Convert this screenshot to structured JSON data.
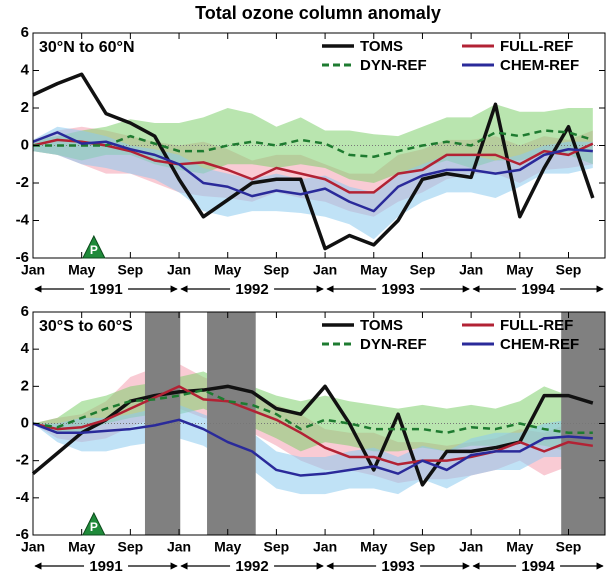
{
  "title": "Total ozone column anomaly",
  "chart_data": [
    {
      "type": "line",
      "label": "30°N to 60°N",
      "x": [
        0,
        2,
        4,
        6,
        8,
        10,
        12,
        14,
        16,
        18,
        20,
        22,
        24,
        26,
        28,
        30,
        32,
        34,
        36,
        38,
        40,
        42,
        44,
        46
      ],
      "xlim": [
        0,
        47
      ],
      "xticks": [
        {
          "value": 0,
          "label": "Jan"
        },
        {
          "value": 4,
          "label": "May"
        },
        {
          "value": 8,
          "label": "Sep"
        },
        {
          "value": 12,
          "label": "Jan"
        },
        {
          "value": 16,
          "label": "May"
        },
        {
          "value": 20,
          "label": "Sep"
        },
        {
          "value": 24,
          "label": "Jan"
        },
        {
          "value": 28,
          "label": "May"
        },
        {
          "value": 32,
          "label": "Sep"
        },
        {
          "value": 36,
          "label": "Jan"
        },
        {
          "value": 40,
          "label": "May"
        },
        {
          "value": 44,
          "label": "Sep"
        }
      ],
      "years": [
        {
          "label": "1991",
          "start": 0,
          "end": 12
        },
        {
          "label": "1992",
          "start": 12,
          "end": 24
        },
        {
          "label": "1993",
          "start": 24,
          "end": 36
        },
        {
          "label": "1994",
          "start": 36,
          "end": 47
        }
      ],
      "ylim": [
        -6,
        6
      ],
      "yticks": [
        -6,
        -4,
        -2,
        0,
        2,
        4,
        6
      ],
      "event": {
        "label": "P",
        "x": 5
      },
      "series": [
        {
          "name": "TOMS",
          "color": "#111111",
          "style": "solid",
          "values": [
            2.7,
            3.3,
            3.8,
            1.7,
            1.2,
            0.5,
            -1.8,
            -3.8,
            -2.9,
            -2.0,
            -1.8,
            -1.8,
            -5.5,
            -4.8,
            -5.3,
            -4.0,
            -1.8,
            -1.5,
            -1.7,
            2.2,
            -3.8,
            -1.2,
            1.0,
            -2.8
          ]
        },
        {
          "name": "FULL-REF",
          "color": "#b22234",
          "style": "solid",
          "values": [
            0,
            0.3,
            0.2,
            0,
            -0.3,
            -0.8,
            -1.0,
            -0.9,
            -1.3,
            -1.8,
            -1.2,
            -1.5,
            -1.8,
            -2.5,
            -2.5,
            -1.5,
            -1.3,
            -0.5,
            -0.5,
            -0.5,
            -1.0,
            -0.3,
            -0.5,
            0.1
          ],
          "band": {
            "color": "#f4a0b0",
            "upper": [
              0.3,
              0.8,
              1.0,
              0.8,
              0.5,
              0.2,
              0,
              0.2,
              -0.2,
              -0.8,
              -0.5,
              -0.5,
              -1.0,
              -1.5,
              -1.5,
              -0.5,
              -0.2,
              0.3,
              0.3,
              0.5,
              0,
              0.5,
              0.3,
              0.8
            ],
            "lower": [
              -0.3,
              -0.5,
              -1.0,
              -1.5,
              -1.5,
              -2.0,
              -2.5,
              -2.7,
              -2.8,
              -3.0,
              -2.5,
              -2.8,
              -3.0,
              -3.5,
              -3.8,
              -3.0,
              -2.5,
              -1.8,
              -1.5,
              -1.5,
              -2.0,
              -1.3,
              -1.2,
              -1.0
            ]
          }
        },
        {
          "name": "DYN-REF",
          "color": "#1e7b30",
          "style": "dashed",
          "values": [
            0,
            0,
            0,
            0,
            0.5,
            0.1,
            -0.3,
            -0.3,
            0,
            0.2,
            0,
            0.3,
            0.1,
            -0.5,
            -0.6,
            -0.3,
            0,
            0.2,
            0,
            0.7,
            0.5,
            0.8,
            0.7,
            0.3
          ],
          "band": {
            "color": "#7fcf6e",
            "upper": [
              0.3,
              0.5,
              0.8,
              1.0,
              1.4,
              1.2,
              1.2,
              1.5,
              2.0,
              1.7,
              1.0,
              1.5,
              0.8,
              0.8,
              0.6,
              0.5,
              1.0,
              1.5,
              1.5,
              2.2,
              1.8,
              1.8,
              2.0,
              2.0
            ],
            "lower": [
              -0.3,
              -0.5,
              -0.8,
              -0.5,
              -0.5,
              -1.0,
              -1.3,
              -1.5,
              -1.0,
              -1.0,
              -1.2,
              -1.0,
              -1.2,
              -1.8,
              -2.0,
              -1.5,
              -1.2,
              -0.8,
              -1.2,
              -0.8,
              -0.8,
              -0.5,
              -0.5,
              -1.0
            ]
          }
        },
        {
          "name": "CHEM-REF",
          "color": "#2a2a9a",
          "style": "solid",
          "values": [
            0.2,
            0.7,
            0.1,
            0.2,
            -0.2,
            -0.5,
            -1.0,
            -2.0,
            -2.2,
            -2.7,
            -2.4,
            -2.6,
            -2.3,
            -3.0,
            -3.5,
            -2.2,
            -1.6,
            -1.3,
            -1.3,
            -1.5,
            -1.3,
            -0.5,
            -0.2,
            -0.3
          ],
          "band": {
            "color": "#8ccbee",
            "upper": [
              0.3,
              1.0,
              0.8,
              0.5,
              0,
              -0.2,
              -0.5,
              -1.2,
              -1.5,
              -1.8,
              -1.5,
              -1.8,
              -1.6,
              -2.2,
              -2.5,
              -1.5,
              -1.0,
              -0.5,
              -0.5,
              -0.8,
              -0.5,
              0,
              0.2,
              0.2
            ],
            "lower": [
              -0.3,
              -0.5,
              -1.0,
              -1.2,
              -1.5,
              -1.8,
              -2.5,
              -3.5,
              -3.8,
              -3.5,
              -3.5,
              -3.6,
              -3.8,
              -4.2,
              -5.0,
              -3.8,
              -3.0,
              -2.5,
              -2.5,
              -2.8,
              -2.2,
              -1.5,
              -1.5,
              -1.2
            ]
          }
        }
      ]
    },
    {
      "type": "line",
      "label": "30°S to 60°S",
      "x": [
        0,
        2,
        4,
        6,
        8,
        10,
        12,
        14,
        16,
        18,
        20,
        22,
        24,
        26,
        28,
        30,
        32,
        34,
        36,
        38,
        40,
        42,
        44,
        46
      ],
      "xlim": [
        0,
        47
      ],
      "xticks": [
        {
          "value": 0,
          "label": "Jan"
        },
        {
          "value": 4,
          "label": "May"
        },
        {
          "value": 8,
          "label": "Sep"
        },
        {
          "value": 12,
          "label": "Jan"
        },
        {
          "value": 16,
          "label": "May"
        },
        {
          "value": 20,
          "label": "Sep"
        },
        {
          "value": 24,
          "label": "Jan"
        },
        {
          "value": 28,
          "label": "May"
        },
        {
          "value": 32,
          "label": "Sep"
        },
        {
          "value": 36,
          "label": "Jan"
        },
        {
          "value": 40,
          "label": "May"
        },
        {
          "value": 44,
          "label": "Sep"
        }
      ],
      "years": [
        {
          "label": "1991",
          "start": 0,
          "end": 12
        },
        {
          "label": "1992",
          "start": 12,
          "end": 24
        },
        {
          "label": "1993",
          "start": 24,
          "end": 36
        },
        {
          "label": "1994",
          "start": 36,
          "end": 47
        }
      ],
      "ylim": [
        -6,
        6
      ],
      "yticks": [
        -6,
        -4,
        -2,
        0,
        2,
        4,
        6
      ],
      "event": {
        "label": "P",
        "x": 5
      },
      "shaded_periods": [
        [
          9.2,
          12.1
        ],
        [
          14.3,
          18.3
        ],
        [
          43.4,
          47
        ]
      ],
      "series": [
        {
          "name": "TOMS",
          "color": "#111111",
          "style": "solid",
          "values": [
            -2.7,
            -1.6,
            -0.5,
            0.2,
            1.2,
            1.5,
            1.7,
            1.8,
            2.0,
            1.7,
            0.8,
            0.5,
            2.0,
            0,
            -2.5,
            0.5,
            -3.3,
            -1.5,
            -1.5,
            -1.3,
            -1.0,
            1.5,
            1.5,
            1.1
          ]
        },
        {
          "name": "FULL-REF",
          "color": "#b22234",
          "style": "solid",
          "values": [
            0,
            -0.3,
            -0.2,
            0.2,
            0.8,
            1.4,
            2.0,
            1.3,
            1.2,
            0.7,
            0.2,
            -0.5,
            -1.3,
            -1.8,
            -1.8,
            -2.2,
            -2.0,
            -2.0,
            -1.8,
            -1.5,
            -1.0,
            -1.5,
            -1.0,
            -1.2
          ],
          "band": {
            "color": "#f4a0b0",
            "upper": [
              0,
              0.3,
              0.5,
              1.2,
              2.5,
              3.0,
              3.2,
              2.5,
              2.0,
              1.5,
              1.0,
              0.5,
              -0.3,
              -0.5,
              -0.5,
              -1.0,
              -1.0,
              -1.2,
              -1.0,
              -0.8,
              -0.3,
              -0.5,
              0,
              0
            ],
            "lower": [
              0,
              -0.8,
              -1.0,
              -0.8,
              -0.2,
              0.3,
              0.8,
              0.3,
              0,
              -0.5,
              -1.2,
              -2.0,
              -2.5,
              -2.5,
              -2.8,
              -3.2,
              -3.0,
              -3.0,
              -2.8,
              -2.5,
              -2.0,
              -2.8,
              -2.3,
              -2.0
            ]
          }
        },
        {
          "name": "DYN-REF",
          "color": "#1e7b30",
          "style": "dashed",
          "values": [
            0,
            -0.2,
            0.3,
            0.8,
            1.2,
            1.3,
            1.5,
            1.8,
            1.2,
            1.0,
            0.5,
            -0.3,
            0.2,
            0,
            -0.3,
            -0.3,
            -0.3,
            -0.5,
            -0.2,
            -0.3,
            0,
            -0.3,
            -0.5,
            -0.5
          ],
          "band": {
            "color": "#7fcf6e",
            "upper": [
              0,
              0.3,
              1.2,
              1.5,
              2.0,
              2.2,
              2.5,
              2.8,
              2.2,
              2.0,
              1.5,
              1.2,
              1.5,
              1.2,
              1.0,
              0.8,
              1.0,
              0.8,
              1.0,
              0.8,
              1.2,
              2.0,
              1.5,
              1.5
            ],
            "lower": [
              0,
              -0.5,
              -0.5,
              0,
              0.3,
              0.5,
              0.5,
              0.8,
              0.2,
              -0.2,
              -0.8,
              -1.5,
              -1.0,
              -1.2,
              -1.5,
              -1.5,
              -1.3,
              -1.5,
              -1.2,
              -1.2,
              -1.0,
              -1.2,
              -1.5,
              -1.5
            ]
          }
        },
        {
          "name": "CHEM-REF",
          "color": "#2a2a9a",
          "style": "solid",
          "values": [
            0,
            -0.5,
            -0.5,
            -0.4,
            -0.3,
            -0.1,
            0.2,
            -0.3,
            -1.0,
            -1.5,
            -2.5,
            -2.8,
            -2.7,
            -2.5,
            -2.3,
            -2.7,
            -2.0,
            -2.5,
            -1.7,
            -1.5,
            -1.5,
            -0.8,
            -0.7,
            -0.8
          ],
          "band": {
            "color": "#8ccbee",
            "upper": [
              0,
              0,
              0.3,
              0.3,
              0.5,
              0.8,
              1.0,
              0.5,
              0,
              -0.5,
              -1.5,
              -1.8,
              -1.8,
              -1.5,
              -1.3,
              -1.8,
              -1.2,
              -1.5,
              -0.8,
              -0.5,
              -0.5,
              0,
              0.2,
              0.2
            ],
            "lower": [
              0,
              -1.0,
              -1.5,
              -1.5,
              -1.2,
              -1.0,
              -0.8,
              -1.2,
              -2.0,
              -2.5,
              -3.5,
              -3.8,
              -3.8,
              -3.5,
              -3.5,
              -3.8,
              -3.0,
              -3.5,
              -2.8,
              -2.5,
              -2.5,
              -1.8,
              -1.8,
              -1.8
            ]
          }
        }
      ]
    }
  ]
}
